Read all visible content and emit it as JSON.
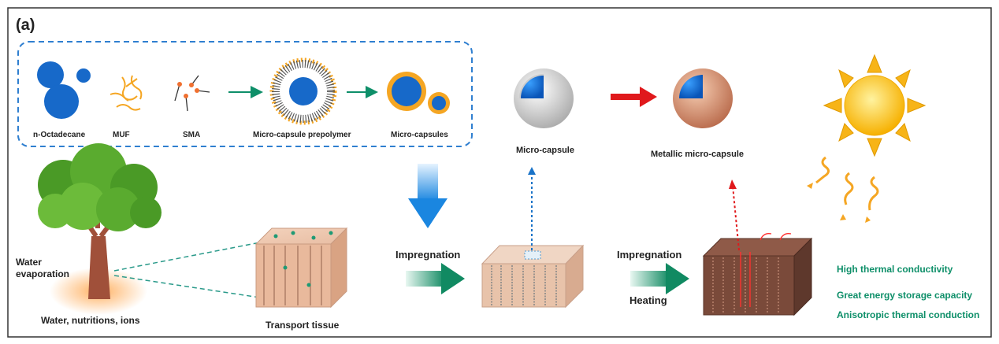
{
  "panel_label": "(a)",
  "synthesis": {
    "items": [
      {
        "id": "octadecane",
        "label": "n-Octadecane"
      },
      {
        "id": "muf",
        "label": "MUF"
      },
      {
        "id": "sma",
        "label": "SMA"
      },
      {
        "id": "prepolymer",
        "label": "Micro-capsule prepolymer"
      },
      {
        "id": "microcapsules",
        "label": "Micro-capsules"
      }
    ]
  },
  "spheres": {
    "capsule": "Micro-capsule",
    "metallic": "Metallic micro-capsule"
  },
  "tree": {
    "evaporation": "Water evaporation",
    "roots": "Water, nutritions, ions"
  },
  "blocks": {
    "transport": "Transport tissue"
  },
  "process": {
    "step1": "Impregnation",
    "step2_line1": "Impregnation",
    "step2_line2": "Heating"
  },
  "properties": [
    "High thermal conductivity",
    "Great energy storage capacity",
    "Anisotropic thermal conduction"
  ],
  "colors": {
    "blue": "#1769c9",
    "orange": "#f5a623",
    "green_text": "#0e8f69",
    "red_arrow": "#e0191c"
  }
}
